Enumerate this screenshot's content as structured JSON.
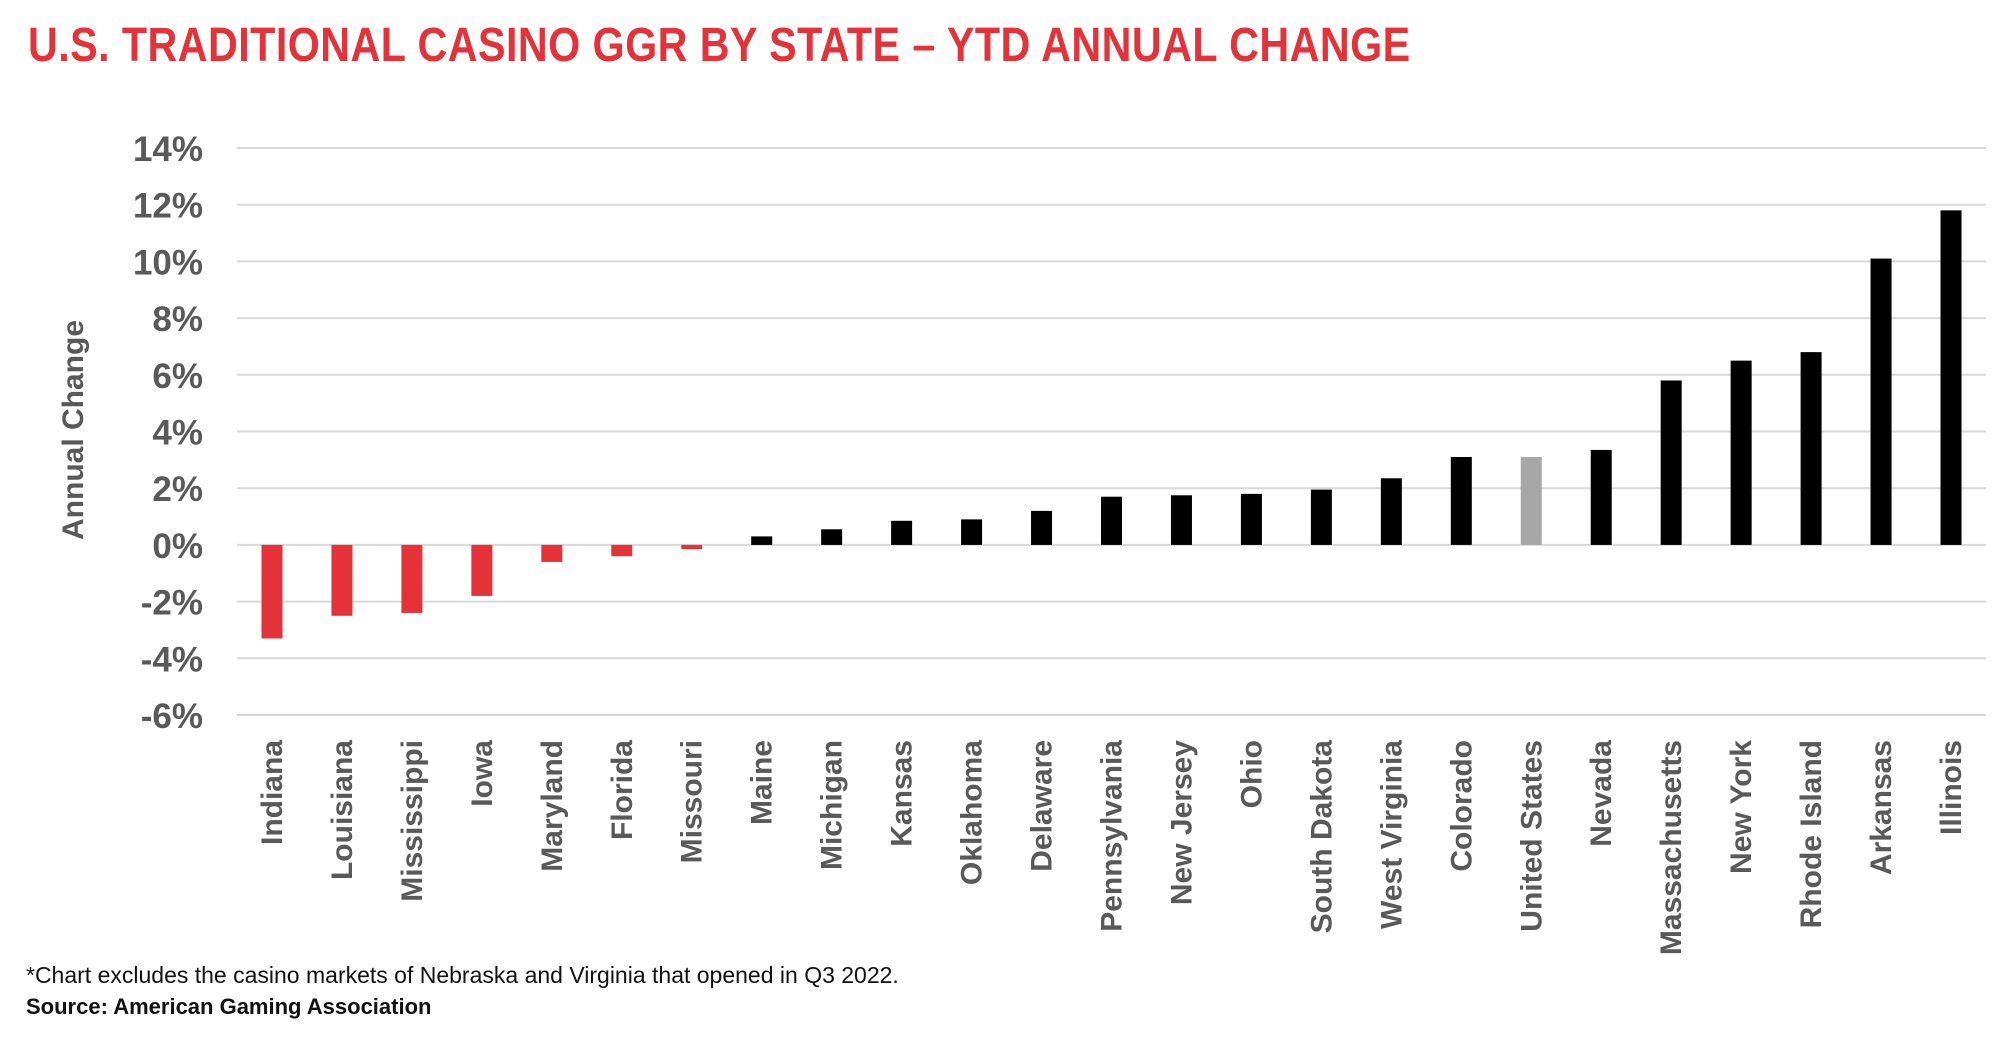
{
  "title": "U.S. TRADITIONAL CASINO GGR BY STATE – YTD ANNUAL CHANGE",
  "footnote": "*Chart excludes the casino markets of Nebraska and Virginia that opened in Q3 2022.",
  "source": "Source: American Gaming Association",
  "colors": {
    "title": "#e53238",
    "negative": "#e53238",
    "positive": "#000000",
    "highlight": "#a6a6a6",
    "grid": "#d9d9d9",
    "axis_text": "#595959"
  },
  "chart_data": {
    "type": "bar",
    "title": "U.S. TRADITIONAL CASINO GGR BY STATE – YTD ANNUAL CHANGE",
    "xlabel": "",
    "ylabel": "Annual Change",
    "ylim": [
      -6,
      14
    ],
    "yticks": [
      14,
      12,
      10,
      8,
      6,
      4,
      2,
      0,
      -2,
      -4,
      -6
    ],
    "ytick_labels": [
      "14%",
      "12%",
      "10%",
      "8%",
      "6%",
      "4%",
      "2%",
      "0%",
      "-2%",
      "-4%",
      "-6%"
    ],
    "grid": true,
    "legend": "none",
    "categories": [
      "Indiana",
      "Louisiana",
      "Mississippi",
      "Iowa",
      "Maryland",
      "Florida",
      "Missouri",
      "Maine",
      "Michigan",
      "Kansas",
      "Oklahoma",
      "Delaware",
      "Pennsylvania",
      "New Jersey",
      "Ohio",
      "South Dakota",
      "West Virginia",
      "Colorado",
      "United States",
      "Nevada",
      "Massachusetts",
      "New York",
      "Rhode Island",
      "Arkansas",
      "Illinois"
    ],
    "values": [
      -3.3,
      -2.5,
      -2.4,
      -1.8,
      -0.6,
      -0.4,
      -0.15,
      0.3,
      0.55,
      0.85,
      0.9,
      1.2,
      1.7,
      1.75,
      1.8,
      1.95,
      2.35,
      3.1,
      3.1,
      3.35,
      5.8,
      6.5,
      6.8,
      10.1,
      11.8
    ],
    "highlight_category": "United States"
  }
}
